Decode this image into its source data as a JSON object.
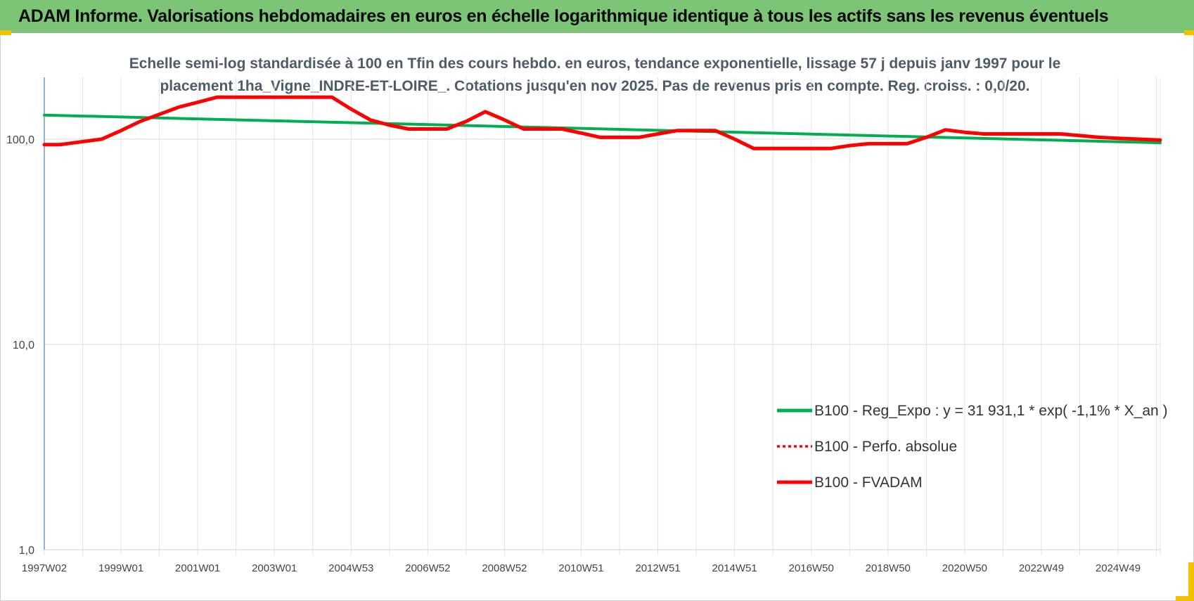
{
  "header": {
    "title": "ADAM Informe. Valorisations hebdomadaires en euros en échelle logarithmique identique à tous les actifs sans les revenus éventuels"
  },
  "chart_data": {
    "type": "line",
    "title_lines": [
      "Echelle semi-log standardisée à 100 en Tfin des cours hebdo. en euros, tendance exponentielle, lissage 57 j depuis janv 1997 pour le",
      "placement 1ha_Vigne_INDRE-ET-LOIRE_. Cotations jusqu'en nov 2025. Pas de revenus pris en compte. Reg. croiss. : 0,0/20."
    ],
    "y_scale": "log",
    "ylim": [
      1,
      200
    ],
    "y_ticks": [
      {
        "value": 1,
        "label": "1,0"
      },
      {
        "value": 10,
        "label": "10,0"
      },
      {
        "value": 100,
        "label": "100,0"
      }
    ],
    "x_ticks": [
      "1997W02",
      "1999W01",
      "2001W01",
      "2003W01",
      "2004W53",
      "2006W52",
      "2008W52",
      "2010W51",
      "2012W51",
      "2014W51",
      "2016W50",
      "2018W50",
      "2020W50",
      "2022W49",
      "2024W49"
    ],
    "xlim_years": [
      1997.0,
      2026.1
    ],
    "x_tick_years": [
      1997.0,
      1999.0,
      2001.0,
      2003.0,
      2005.0,
      2007.0,
      2009.0,
      2011.0,
      2013.0,
      2015.0,
      2017.0,
      2019.0,
      2021.0,
      2023.0,
      2025.0
    ],
    "grid": {
      "vertical": true,
      "horizontal": true
    },
    "legend_position": "right",
    "series": [
      {
        "name": "B100 - Reg_Expo : y = 31 931,1 * exp( -1,1% *  X_an )",
        "color": "#00b050",
        "style": "solid",
        "points": [
          [
            1997.0,
            131
          ],
          [
            2026.1,
            96
          ]
        ]
      },
      {
        "name": "B100 - Perfo. absolue",
        "color": "#ff0000",
        "style": "dotted",
        "points": []
      },
      {
        "name": "B100 - FVADAM",
        "color": "#ff0000",
        "style": "solid",
        "points": [
          [
            1997.0,
            94
          ],
          [
            1997.4,
            94
          ],
          [
            1998.5,
            100
          ],
          [
            1999.0,
            110
          ],
          [
            1999.5,
            122
          ],
          [
            2000.0,
            132
          ],
          [
            2000.5,
            143
          ],
          [
            2001.0,
            151
          ],
          [
            2001.5,
            160
          ],
          [
            2002.0,
            160
          ],
          [
            2003.0,
            160
          ],
          [
            2004.0,
            160
          ],
          [
            2004.5,
            160
          ],
          [
            2005.0,
            140
          ],
          [
            2005.5,
            124
          ],
          [
            2006.0,
            117
          ],
          [
            2006.5,
            112
          ],
          [
            2007.5,
            112
          ],
          [
            2008.0,
            122
          ],
          [
            2008.5,
            136
          ],
          [
            2009.0,
            124
          ],
          [
            2009.5,
            112
          ],
          [
            2010.5,
            112
          ],
          [
            2011.0,
            107
          ],
          [
            2011.5,
            102
          ],
          [
            2012.5,
            102
          ],
          [
            2013.0,
            106
          ],
          [
            2013.5,
            110
          ],
          [
            2014.5,
            110
          ],
          [
            2015.0,
            100
          ],
          [
            2015.5,
            90
          ],
          [
            2016.5,
            90
          ],
          [
            2017.5,
            90
          ],
          [
            2018.0,
            93
          ],
          [
            2018.5,
            95
          ],
          [
            2019.5,
            95
          ],
          [
            2020.0,
            102
          ],
          [
            2020.5,
            111
          ],
          [
            2021.0,
            108
          ],
          [
            2021.5,
            106
          ],
          [
            2022.5,
            106
          ],
          [
            2023.5,
            106
          ],
          [
            2024.0,
            104
          ],
          [
            2024.5,
            102
          ],
          [
            2025.0,
            101
          ],
          [
            2026.1,
            99
          ]
        ]
      }
    ]
  }
}
